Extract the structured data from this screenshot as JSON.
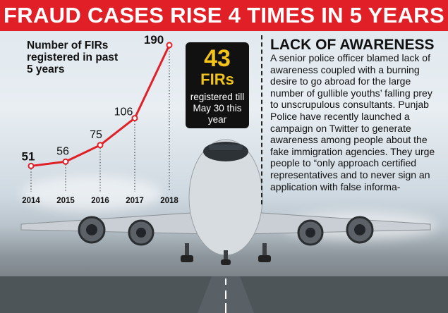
{
  "header": {
    "title": "FRAUD CASES RISE 4 TIMES IN 5 YEARS"
  },
  "badge": {
    "value": "43",
    "unit": "FIRs",
    "caption": "registered till May 30 this year"
  },
  "panel": {
    "title": "LACK OF AWARENESS",
    "body": "A senior police officer blamed lack of awareness coupled with a burning desire to go abroad for the large number of gullible youths’ falling prey to unscrupulous consultants. Punjab Police have recently launched a campaign on Twitter to generate awareness among people about the fake immigration agencies. They urge people to “only approach certified representatives and to never sign an application with false informa-"
  },
  "colors": {
    "accent": "#e11f26",
    "badge_bg": "#111111",
    "badge_number": "#f2c318"
  },
  "chart_data": {
    "type": "line",
    "title": "Number of FIRs registered in past 5 years",
    "categories": [
      "2014",
      "2015",
      "2016",
      "2017",
      "2018"
    ],
    "values": [
      51,
      56,
      75,
      106,
      190
    ],
    "data_labels": [
      "51",
      "56",
      "75",
      "106",
      "190"
    ],
    "xlabel": "",
    "ylabel": "",
    "grid": false,
    "line_color": "#e11f26",
    "ylim": [
      40,
      190
    ]
  }
}
